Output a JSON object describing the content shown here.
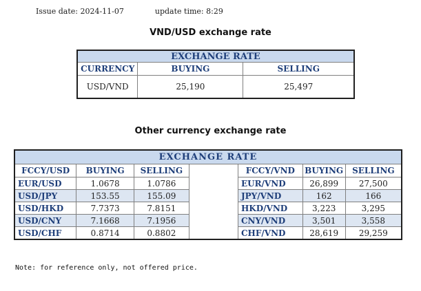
{
  "meta": {
    "issue_date_label": "Issue date:",
    "issue_date": "2024-11-07",
    "update_time_label": "update time:",
    "update_time": "8:29"
  },
  "vnd_usd": {
    "title": "VND/USD exchange rate",
    "band": "EXCHANGE RATE",
    "headers": [
      "CURRENCY",
      "BUYING",
      "SELLING"
    ],
    "row": [
      "USD/VND",
      "25,190",
      "25,497"
    ]
  },
  "other": {
    "title": "Other currency exchange rate",
    "band": "EXCHANGE RATE",
    "left_headers": [
      "FCCY/USD",
      "BUYING",
      "SELLING"
    ],
    "right_headers": [
      "FCCY/VND",
      "BUYING",
      "SELLING"
    ],
    "rows": [
      {
        "l_pair": "EUR/USD",
        "l_buy": "1.0678",
        "l_sell": "1.0786",
        "r_pair": "EUR/VND",
        "r_buy": "26,899",
        "r_sell": "27,500"
      },
      {
        "l_pair": "USD/JPY",
        "l_buy": "153.55",
        "l_sell": "155.09",
        "r_pair": "JPY/VND",
        "r_buy": "162",
        "r_sell": "166"
      },
      {
        "l_pair": "USD/HKD",
        "l_buy": "7.7373",
        "l_sell": "7.8151",
        "r_pair": "HKD/VND",
        "r_buy": "3,223",
        "r_sell": "3,295"
      },
      {
        "l_pair": "USD/CNY",
        "l_buy": "7.1668",
        "l_sell": "7.1956",
        "r_pair": "CNY/VND",
        "r_buy": "3,501",
        "r_sell": "3,558"
      },
      {
        "l_pair": "USD/CHF",
        "l_buy": "0.8714",
        "l_sell": "0.8802",
        "r_pair": "CHF/VND",
        "r_buy": "28,619",
        "r_sell": "29,259"
      }
    ]
  },
  "note": "Note: for reference only, not offered price."
}
